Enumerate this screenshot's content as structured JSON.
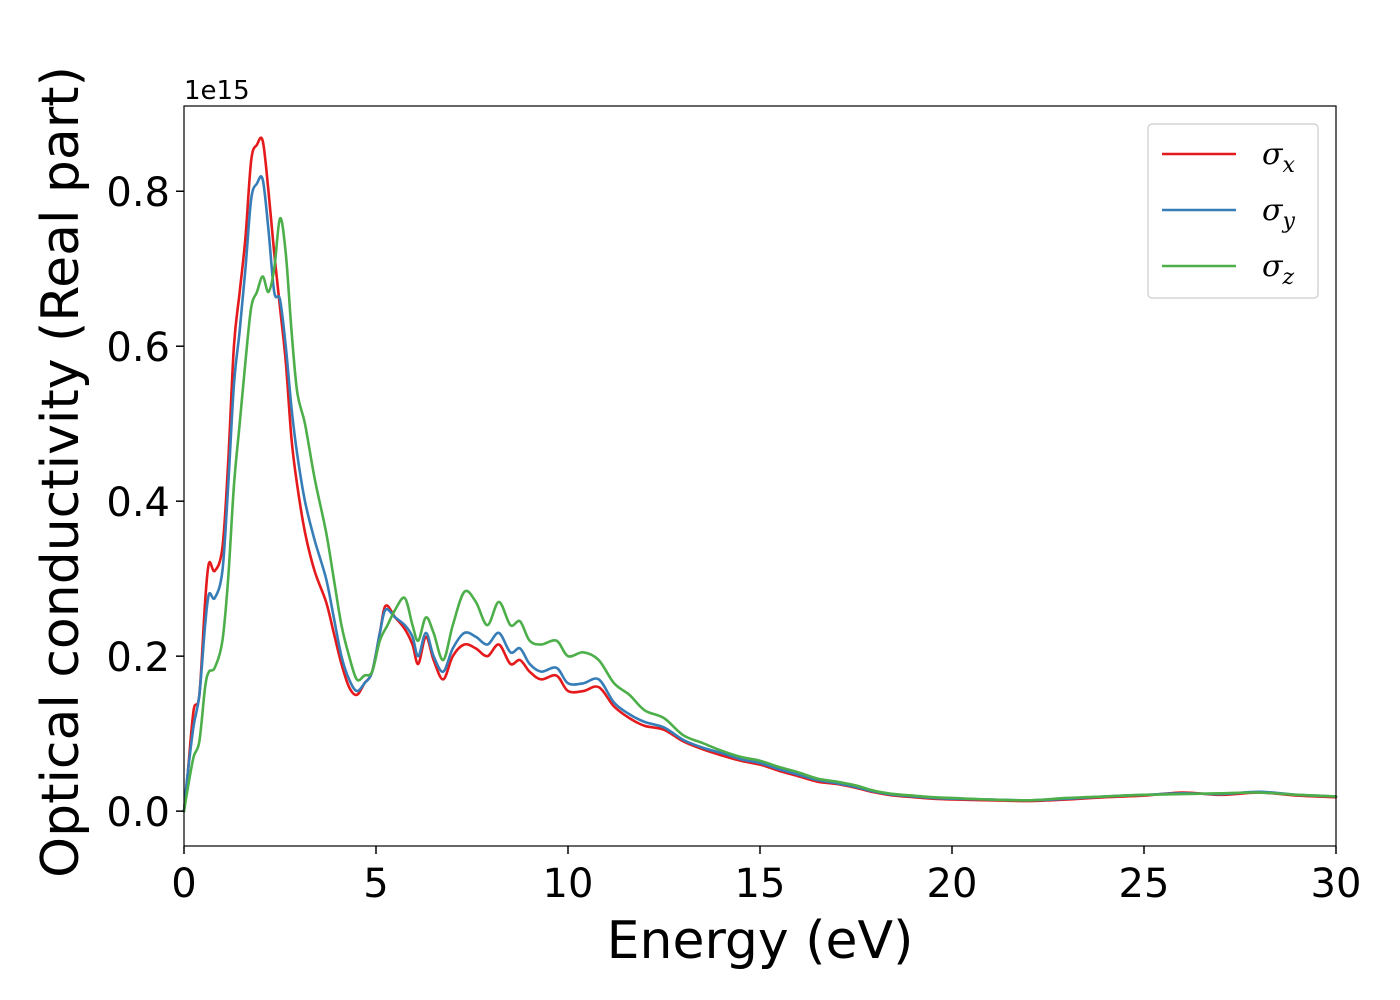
{
  "chart_data": {
    "type": "line",
    "xlabel": "Energy (eV)",
    "ylabel": "Optical conductivity (Real part)",
    "offset_text": "1e15",
    "xlim": [
      0,
      30
    ],
    "ylim": [
      -0.045,
      0.91
    ],
    "x_ticks": [
      {
        "value": 0,
        "label": "0"
      },
      {
        "value": 5,
        "label": "5"
      },
      {
        "value": 10,
        "label": "10"
      },
      {
        "value": 15,
        "label": "15"
      },
      {
        "value": 20,
        "label": "20"
      },
      {
        "value": 25,
        "label": "25"
      },
      {
        "value": 30,
        "label": "30"
      }
    ],
    "y_ticks": [
      {
        "value": 0.0,
        "label": "0.0"
      },
      {
        "value": 0.2,
        "label": "0.2"
      },
      {
        "value": 0.4,
        "label": "0.4"
      },
      {
        "value": 0.6,
        "label": "0.6"
      },
      {
        "value": 0.8,
        "label": "0.8"
      }
    ],
    "grid": false,
    "legend_position": "top-right",
    "series": [
      {
        "name": "σ",
        "subscript": "x",
        "color": "#e41a1c",
        "points": [
          [
            0,
            0.0
          ],
          [
            0.1,
            0.05
          ],
          [
            0.25,
            0.13
          ],
          [
            0.4,
            0.15
          ],
          [
            0.55,
            0.27
          ],
          [
            0.65,
            0.32
          ],
          [
            0.8,
            0.31
          ],
          [
            1.0,
            0.34
          ],
          [
            1.15,
            0.45
          ],
          [
            1.3,
            0.6
          ],
          [
            1.45,
            0.67
          ],
          [
            1.6,
            0.74
          ],
          [
            1.75,
            0.84
          ],
          [
            1.9,
            0.86
          ],
          [
            2.05,
            0.865
          ],
          [
            2.2,
            0.8
          ],
          [
            2.35,
            0.72
          ],
          [
            2.5,
            0.65
          ],
          [
            2.65,
            0.58
          ],
          [
            2.8,
            0.48
          ],
          [
            2.95,
            0.42
          ],
          [
            3.15,
            0.36
          ],
          [
            3.4,
            0.31
          ],
          [
            3.7,
            0.27
          ],
          [
            3.9,
            0.23
          ],
          [
            4.1,
            0.19
          ],
          [
            4.3,
            0.16
          ],
          [
            4.5,
            0.15
          ],
          [
            4.7,
            0.165
          ],
          [
            4.9,
            0.18
          ],
          [
            5.1,
            0.23
          ],
          [
            5.25,
            0.265
          ],
          [
            5.5,
            0.25
          ],
          [
            5.75,
            0.235
          ],
          [
            5.95,
            0.215
          ],
          [
            6.1,
            0.19
          ],
          [
            6.3,
            0.225
          ],
          [
            6.5,
            0.195
          ],
          [
            6.75,
            0.17
          ],
          [
            7.0,
            0.2
          ],
          [
            7.3,
            0.215
          ],
          [
            7.6,
            0.21
          ],
          [
            7.9,
            0.2
          ],
          [
            8.2,
            0.215
          ],
          [
            8.5,
            0.19
          ],
          [
            8.75,
            0.195
          ],
          [
            9.0,
            0.18
          ],
          [
            9.3,
            0.17
          ],
          [
            9.7,
            0.175
          ],
          [
            10.0,
            0.155
          ],
          [
            10.4,
            0.155
          ],
          [
            10.8,
            0.16
          ],
          [
            11.2,
            0.135
          ],
          [
            11.6,
            0.12
          ],
          [
            12.0,
            0.11
          ],
          [
            12.5,
            0.105
          ],
          [
            13.0,
            0.09
          ],
          [
            13.5,
            0.08
          ],
          [
            14.0,
            0.072
          ],
          [
            14.5,
            0.065
          ],
          [
            15.0,
            0.06
          ],
          [
            15.5,
            0.052
          ],
          [
            16.0,
            0.045
          ],
          [
            16.5,
            0.038
          ],
          [
            17.0,
            0.035
          ],
          [
            17.5,
            0.03
          ],
          [
            18.0,
            0.024
          ],
          [
            18.5,
            0.02
          ],
          [
            19.0,
            0.018
          ],
          [
            19.5,
            0.016
          ],
          [
            20.0,
            0.015
          ],
          [
            21.0,
            0.014
          ],
          [
            22.0,
            0.013
          ],
          [
            23.0,
            0.015
          ],
          [
            24.0,
            0.018
          ],
          [
            25.0,
            0.02
          ],
          [
            26.0,
            0.024
          ],
          [
            27.0,
            0.021
          ],
          [
            28.0,
            0.024
          ],
          [
            29.0,
            0.02
          ],
          [
            30.0,
            0.018
          ]
        ]
      },
      {
        "name": "σ",
        "subscript": "y",
        "color": "#377eb8",
        "points": [
          [
            0,
            0.0
          ],
          [
            0.1,
            0.05
          ],
          [
            0.25,
            0.11
          ],
          [
            0.4,
            0.15
          ],
          [
            0.55,
            0.24
          ],
          [
            0.65,
            0.28
          ],
          [
            0.8,
            0.275
          ],
          [
            1.0,
            0.31
          ],
          [
            1.15,
            0.42
          ],
          [
            1.3,
            0.55
          ],
          [
            1.45,
            0.62
          ],
          [
            1.6,
            0.7
          ],
          [
            1.75,
            0.79
          ],
          [
            1.9,
            0.81
          ],
          [
            2.05,
            0.815
          ],
          [
            2.2,
            0.75
          ],
          [
            2.35,
            0.67
          ],
          [
            2.5,
            0.66
          ],
          [
            2.65,
            0.6
          ],
          [
            2.8,
            0.52
          ],
          [
            2.95,
            0.46
          ],
          [
            3.15,
            0.4
          ],
          [
            3.4,
            0.35
          ],
          [
            3.7,
            0.3
          ],
          [
            3.9,
            0.25
          ],
          [
            4.1,
            0.2
          ],
          [
            4.3,
            0.17
          ],
          [
            4.5,
            0.155
          ],
          [
            4.7,
            0.165
          ],
          [
            4.9,
            0.18
          ],
          [
            5.1,
            0.23
          ],
          [
            5.25,
            0.26
          ],
          [
            5.5,
            0.25
          ],
          [
            5.75,
            0.24
          ],
          [
            5.95,
            0.225
          ],
          [
            6.1,
            0.2
          ],
          [
            6.3,
            0.23
          ],
          [
            6.5,
            0.2
          ],
          [
            6.75,
            0.18
          ],
          [
            7.0,
            0.21
          ],
          [
            7.3,
            0.23
          ],
          [
            7.6,
            0.225
          ],
          [
            7.9,
            0.215
          ],
          [
            8.2,
            0.23
          ],
          [
            8.5,
            0.205
          ],
          [
            8.75,
            0.21
          ],
          [
            9.0,
            0.19
          ],
          [
            9.3,
            0.18
          ],
          [
            9.7,
            0.185
          ],
          [
            10.0,
            0.165
          ],
          [
            10.4,
            0.165
          ],
          [
            10.8,
            0.17
          ],
          [
            11.2,
            0.14
          ],
          [
            11.6,
            0.125
          ],
          [
            12.0,
            0.115
          ],
          [
            12.5,
            0.108
          ],
          [
            13.0,
            0.092
          ],
          [
            13.5,
            0.082
          ],
          [
            14.0,
            0.075
          ],
          [
            14.5,
            0.067
          ],
          [
            15.0,
            0.062
          ],
          [
            15.5,
            0.054
          ],
          [
            16.0,
            0.047
          ],
          [
            16.5,
            0.04
          ],
          [
            17.0,
            0.036
          ],
          [
            17.5,
            0.031
          ],
          [
            18.0,
            0.025
          ],
          [
            18.5,
            0.021
          ],
          [
            19.0,
            0.019
          ],
          [
            19.5,
            0.017
          ],
          [
            20.0,
            0.016
          ],
          [
            21.0,
            0.015
          ],
          [
            22.0,
            0.014
          ],
          [
            23.0,
            0.016
          ],
          [
            24.0,
            0.019
          ],
          [
            25.0,
            0.021
          ],
          [
            26.0,
            0.023
          ],
          [
            27.0,
            0.022
          ],
          [
            28.0,
            0.025
          ],
          [
            29.0,
            0.021
          ],
          [
            30.0,
            0.019
          ]
        ]
      },
      {
        "name": "σ",
        "subscript": "z",
        "color": "#4daf4a",
        "points": [
          [
            0,
            0.0
          ],
          [
            0.1,
            0.03
          ],
          [
            0.25,
            0.07
          ],
          [
            0.4,
            0.09
          ],
          [
            0.55,
            0.16
          ],
          [
            0.65,
            0.18
          ],
          [
            0.8,
            0.185
          ],
          [
            1.0,
            0.22
          ],
          [
            1.15,
            0.3
          ],
          [
            1.3,
            0.42
          ],
          [
            1.45,
            0.5
          ],
          [
            1.6,
            0.58
          ],
          [
            1.75,
            0.65
          ],
          [
            1.9,
            0.67
          ],
          [
            2.05,
            0.69
          ],
          [
            2.2,
            0.67
          ],
          [
            2.35,
            0.7
          ],
          [
            2.5,
            0.765
          ],
          [
            2.65,
            0.72
          ],
          [
            2.8,
            0.62
          ],
          [
            2.95,
            0.54
          ],
          [
            3.15,
            0.5
          ],
          [
            3.4,
            0.43
          ],
          [
            3.7,
            0.36
          ],
          [
            3.9,
            0.3
          ],
          [
            4.1,
            0.24
          ],
          [
            4.3,
            0.2
          ],
          [
            4.5,
            0.17
          ],
          [
            4.7,
            0.175
          ],
          [
            4.9,
            0.18
          ],
          [
            5.1,
            0.22
          ],
          [
            5.3,
            0.24
          ],
          [
            5.5,
            0.26
          ],
          [
            5.75,
            0.275
          ],
          [
            5.95,
            0.24
          ],
          [
            6.1,
            0.22
          ],
          [
            6.3,
            0.25
          ],
          [
            6.5,
            0.23
          ],
          [
            6.75,
            0.195
          ],
          [
            7.0,
            0.24
          ],
          [
            7.3,
            0.283
          ],
          [
            7.6,
            0.27
          ],
          [
            7.9,
            0.24
          ],
          [
            8.2,
            0.27
          ],
          [
            8.5,
            0.24
          ],
          [
            8.75,
            0.245
          ],
          [
            9.0,
            0.22
          ],
          [
            9.3,
            0.215
          ],
          [
            9.7,
            0.22
          ],
          [
            10.0,
            0.2
          ],
          [
            10.4,
            0.205
          ],
          [
            10.8,
            0.195
          ],
          [
            11.2,
            0.165
          ],
          [
            11.6,
            0.15
          ],
          [
            12.0,
            0.13
          ],
          [
            12.5,
            0.12
          ],
          [
            13.0,
            0.098
          ],
          [
            13.5,
            0.088
          ],
          [
            14.0,
            0.078
          ],
          [
            14.5,
            0.07
          ],
          [
            15.0,
            0.065
          ],
          [
            15.5,
            0.057
          ],
          [
            16.0,
            0.05
          ],
          [
            16.5,
            0.042
          ],
          [
            17.0,
            0.038
          ],
          [
            17.5,
            0.033
          ],
          [
            18.0,
            0.026
          ],
          [
            18.5,
            0.022
          ],
          [
            19.0,
            0.02
          ],
          [
            19.5,
            0.018
          ],
          [
            20.0,
            0.017
          ],
          [
            21.0,
            0.015
          ],
          [
            22.0,
            0.014
          ],
          [
            23.0,
            0.017
          ],
          [
            24.0,
            0.019
          ],
          [
            25.0,
            0.021
          ],
          [
            26.0,
            0.022
          ],
          [
            27.0,
            0.023
          ],
          [
            28.0,
            0.024
          ],
          [
            29.0,
            0.021
          ],
          [
            30.0,
            0.019
          ]
        ]
      }
    ]
  }
}
